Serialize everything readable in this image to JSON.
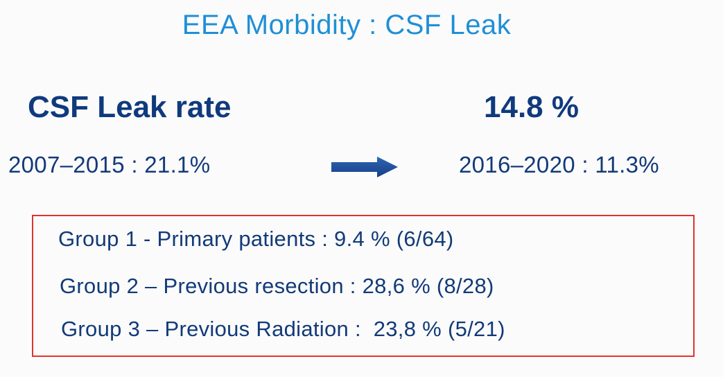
{
  "slide": {
    "title": "EEA Morbidity : CSF Leak",
    "rate_label": "CSF Leak rate",
    "rate_value": "14.8 %",
    "period_before": "2007–2015  : 21.1%",
    "period_after": "2016–2020 : 11.3%",
    "arrow_icon": "right-arrow-icon",
    "groups": [
      "Group 1 - Primary patients : 9.4 % (6/64)",
      "Group 2 – Previous resection : 28,6 % (8/28)",
      "Group 3 – Previous Radiation :  23,8 % (5/21)"
    ],
    "colors": {
      "title": "#1f8fd6",
      "text": "#123a78",
      "box_border": "#e0332c",
      "arrow": "#1b4f9c"
    }
  }
}
